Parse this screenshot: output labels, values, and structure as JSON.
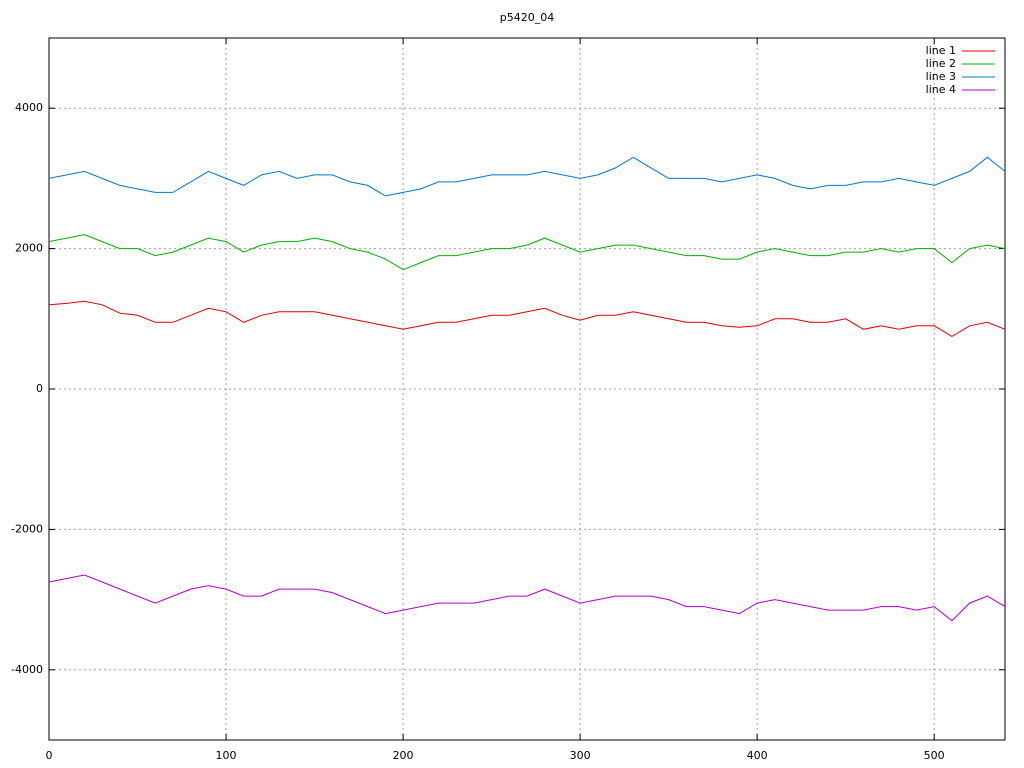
{
  "chart_data": {
    "type": "line",
    "title": "p5420_04",
    "x": [
      0,
      10,
      20,
      30,
      40,
      50,
      60,
      70,
      80,
      90,
      100,
      110,
      120,
      130,
      140,
      150,
      160,
      170,
      180,
      190,
      200,
      210,
      220,
      230,
      240,
      250,
      260,
      270,
      280,
      290,
      300,
      310,
      320,
      330,
      340,
      350,
      360,
      370,
      380,
      390,
      400,
      410,
      420,
      430,
      440,
      450,
      460,
      470,
      480,
      490,
      500,
      510,
      520,
      530,
      540
    ],
    "series": [
      {
        "name": "line 1",
        "color": "#e00000",
        "values": [
          1200,
          1220,
          1250,
          1200,
          1080,
          1050,
          950,
          950,
          1050,
          1150,
          1100,
          950,
          1050,
          1100,
          1100,
          1100,
          1050,
          1000,
          950,
          900,
          850,
          900,
          950,
          950,
          1000,
          1050,
          1050,
          1100,
          1150,
          1050,
          980,
          1050,
          1050,
          1100,
          1050,
          1000,
          950,
          950,
          900,
          880,
          900,
          1000,
          1000,
          950,
          950,
          1000,
          850,
          900,
          850,
          900,
          900,
          750,
          900,
          950,
          850
        ]
      },
      {
        "name": "line 2",
        "color": "#00b000",
        "values": [
          2100,
          2150,
          2200,
          2100,
          2000,
          2000,
          1900,
          1950,
          2050,
          2150,
          2100,
          1950,
          2050,
          2100,
          2100,
          2150,
          2100,
          2000,
          1950,
          1850,
          1700,
          1800,
          1900,
          1900,
          1950,
          2000,
          2000,
          2050,
          2150,
          2050,
          1950,
          2000,
          2050,
          2050,
          2000,
          1950,
          1900,
          1900,
          1850,
          1850,
          1950,
          2000,
          1950,
          1900,
          1900,
          1950,
          1950,
          2000,
          1950,
          2000,
          2000,
          1800,
          2000,
          2050,
          2000
        ]
      },
      {
        "name": "line 3",
        "color": "#0078d0",
        "values": [
          3000,
          3050,
          3100,
          3000,
          2900,
          2850,
          2800,
          2800,
          2950,
          3100,
          3000,
          2900,
          3050,
          3100,
          3000,
          3050,
          3050,
          2950,
          2900,
          2750,
          2800,
          2850,
          2950,
          2950,
          3000,
          3050,
          3050,
          3050,
          3100,
          3050,
          3000,
          3050,
          3150,
          3300,
          3150,
          3000,
          3000,
          3000,
          2950,
          3000,
          3050,
          3000,
          2900,
          2850,
          2900,
          2900,
          2950,
          2950,
          3000,
          2950,
          2900,
          3000,
          3100,
          3300,
          3100
        ]
      },
      {
        "name": "line 4",
        "color": "#b000d0",
        "values": [
          -2750,
          -2700,
          -2650,
          -2750,
          -2850,
          -2950,
          -3050,
          -2950,
          -2850,
          -2800,
          -2850,
          -2950,
          -2950,
          -2850,
          -2850,
          -2850,
          -2900,
          -3000,
          -3100,
          -3200,
          -3150,
          -3100,
          -3050,
          -3050,
          -3050,
          -3000,
          -2950,
          -2950,
          -2850,
          -2950,
          -3050,
          -3000,
          -2950,
          -2950,
          -2950,
          -3000,
          -3100,
          -3100,
          -3150,
          -3200,
          -3050,
          -3000,
          -3050,
          -3100,
          -3150,
          -3150,
          -3150,
          -3100,
          -3100,
          -3150,
          -3100,
          -3300,
          -3050,
          -2950,
          -3100
        ]
      }
    ],
    "xlim": [
      0,
      540
    ],
    "xticks": [
      0,
      100,
      200,
      300,
      400,
      500
    ],
    "ylim": [
      -5000,
      5000
    ],
    "yticks": [
      -4000,
      -2000,
      0,
      2000,
      4000
    ],
    "grid": true,
    "legend": "top-right"
  }
}
